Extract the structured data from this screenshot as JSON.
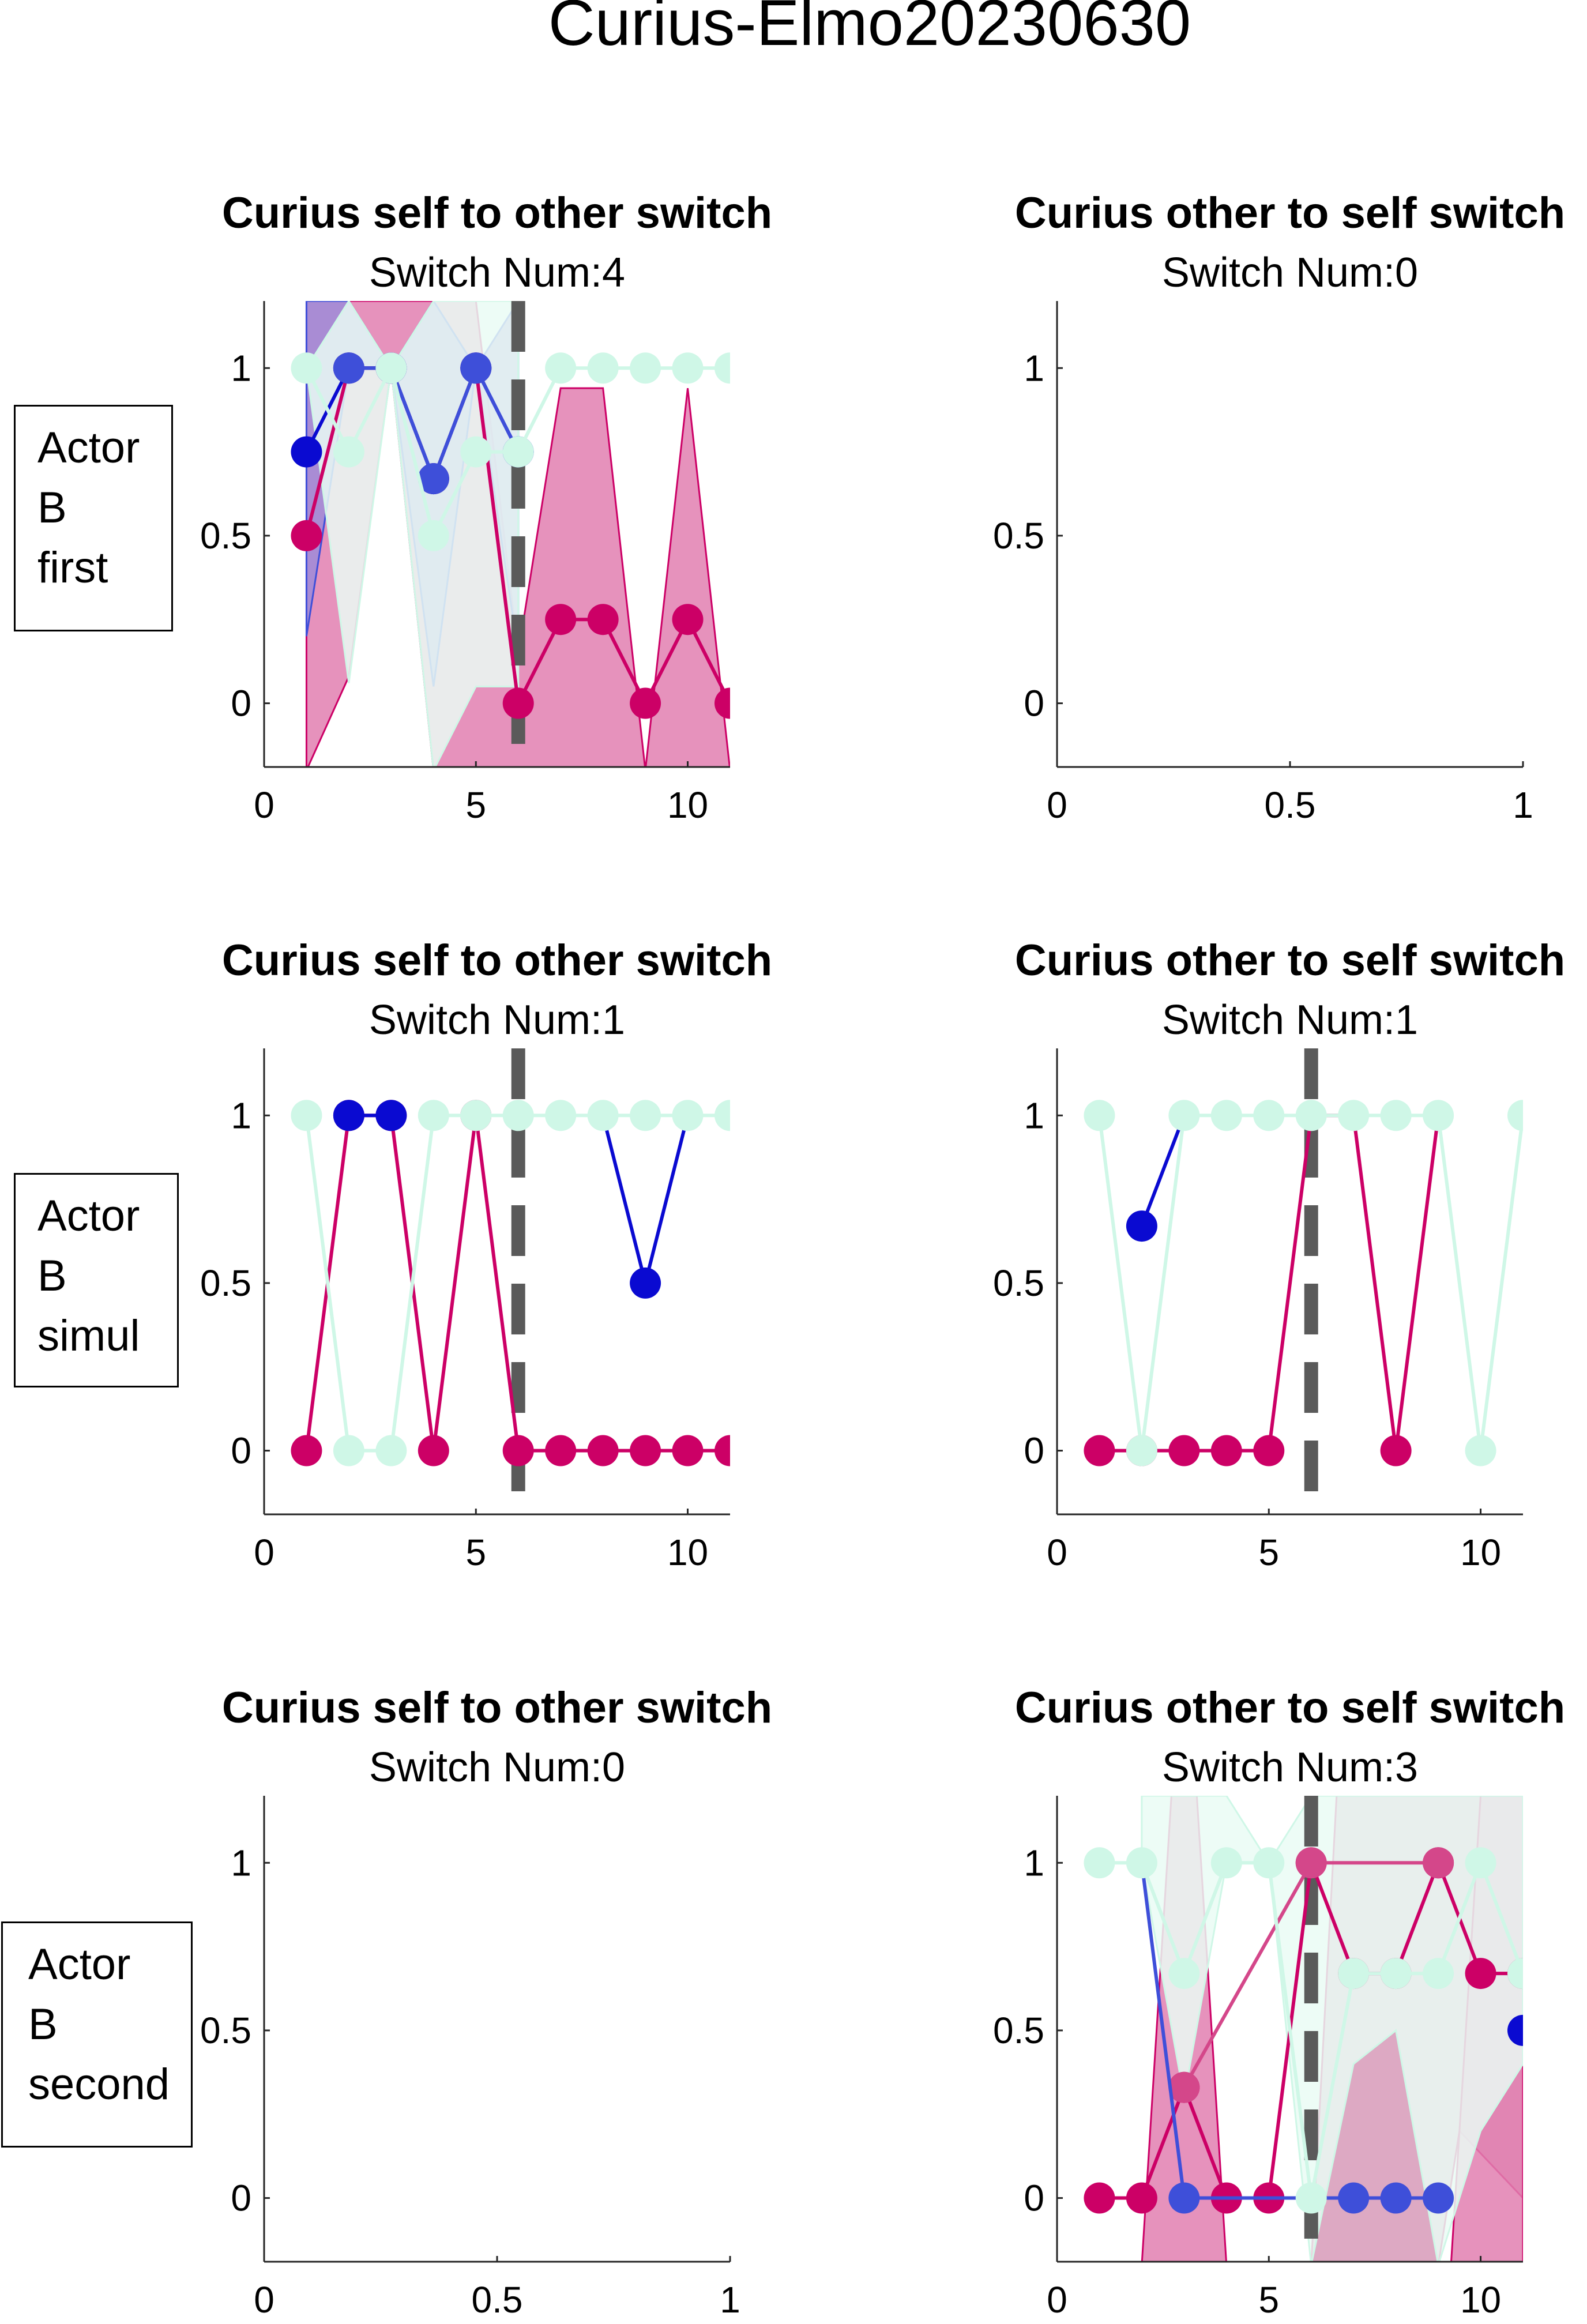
{
  "figure_title": "Curius-Elmo20230630",
  "row_labels": [
    [
      "Actor",
      "B",
      "first"
    ],
    [
      "Actor",
      "B",
      "simul"
    ],
    [
      "Actor",
      "B",
      "second"
    ]
  ],
  "colors": {
    "pink": "#cc0066",
    "pink_light": "#d4478a",
    "blue": "#0a0ad1",
    "blue_light": "#3e4fd9",
    "mint": "#cff7e7",
    "pink_fill": "#e27fb0",
    "blue_fill": "#8a9cf0",
    "purple_fill": "#9e8bd8",
    "mint_fill": "#eafcf5",
    "mauve_fill": "#d79ab9",
    "switch_line": "#5a5a5a"
  },
  "chart_data": [
    {
      "type": "line",
      "title": "Curius self to other switch",
      "subtitle": "Switch Num:4",
      "xlim": [
        0,
        11
      ],
      "ylim": [
        -0.19,
        1.2
      ],
      "xticks": [
        0,
        5,
        10
      ],
      "yticks": [
        0,
        0.5,
        1
      ],
      "xticklabels": [
        "0",
        "5",
        "10"
      ],
      "yticklabels": [
        "0",
        "0.5",
        "1"
      ],
      "switch_x": 6,
      "bands": [
        {
          "color": "pink_fill",
          "x": [
            1,
            2,
            3,
            4,
            5,
            6,
            7,
            8,
            9,
            10,
            11
          ],
          "upper": [
            1.2,
            1.2,
            1.2,
            1.2,
            1.2,
            0.15,
            0.94,
            0.94,
            -0.2,
            0.94,
            -0.2
          ],
          "lower": [
            -0.2,
            0.08,
            1.0,
            -0.2,
            -0.2,
            -0.2,
            -0.2,
            -0.2,
            -0.2,
            -0.2,
            -0.2
          ]
        },
        {
          "color": "purple_fill",
          "x": [
            1,
            2,
            3,
            4,
            5,
            6
          ],
          "upper": [
            1.2,
            1.2,
            1.0,
            1.2,
            1.0,
            1.2
          ],
          "lower": [
            0.2,
            1.0,
            1.0,
            0.05,
            1.0,
            0.15
          ]
        },
        {
          "color": "mint_fill",
          "x": [
            1,
            2,
            3,
            4,
            5,
            6
          ],
          "upper": [
            1.0,
            1.2,
            1.0,
            1.2,
            1.2,
            1.2
          ],
          "lower": [
            1.0,
            0.06,
            1.0,
            -0.2,
            0.05,
            0.05
          ]
        }
      ],
      "series": [
        {
          "color": "pink",
          "x": [
            1,
            2,
            3,
            4,
            5,
            6,
            7,
            8,
            9,
            10,
            11
          ],
          "y": [
            0.5,
            1.0,
            1.0,
            0.67,
            1.0,
            0,
            0.25,
            0.25,
            0,
            0.25,
            0
          ]
        },
        {
          "color": "blue",
          "x": [
            1,
            2,
            3,
            4,
            5,
            6
          ],
          "y": [
            0.75,
            1.0,
            1.0,
            0.67,
            1.0,
            0.75
          ]
        },
        {
          "color": "blue_light",
          "x": [
            2,
            3,
            4,
            5,
            6
          ],
          "y": [
            1.0,
            1.0,
            0.67,
            1.0,
            0.75
          ]
        },
        {
          "color": "mint",
          "x": [
            1,
            2,
            3,
            4,
            5,
            6,
            7,
            8,
            9,
            10,
            11
          ],
          "y": [
            1.0,
            0.75,
            1.0,
            0.5,
            0.75,
            0.75,
            1.0,
            1.0,
            1.0,
            1.0,
            1.0
          ]
        }
      ]
    },
    {
      "type": "line",
      "title": "Curius other to self switch",
      "subtitle": "Switch Num:0",
      "xlim": [
        0,
        1
      ],
      "ylim": [
        -0.19,
        1.2
      ],
      "xticks": [
        0,
        0.5,
        1
      ],
      "yticks": [
        0,
        0.5,
        1
      ],
      "xticklabels": [
        "0",
        "0.5",
        "1"
      ],
      "yticklabels": [
        "0",
        "0.5",
        "1"
      ],
      "series": []
    },
    {
      "type": "line",
      "title": "Curius self to other switch",
      "subtitle": "Switch Num:1",
      "xlim": [
        0,
        11
      ],
      "ylim": [
        -0.19,
        1.2
      ],
      "xticks": [
        0,
        5,
        10
      ],
      "yticks": [
        0,
        0.5,
        1
      ],
      "xticklabels": [
        "0",
        "5",
        "10"
      ],
      "yticklabels": [
        "0",
        "0.5",
        "1"
      ],
      "switch_x": 6,
      "series": [
        {
          "color": "pink",
          "x": [
            1,
            2,
            3,
            4,
            5,
            6,
            7,
            8,
            9,
            10,
            11
          ],
          "y": [
            0,
            1,
            1,
            0,
            1,
            0,
            0,
            0,
            0,
            0,
            0
          ]
        },
        {
          "color": "blue",
          "x": [
            2,
            3
          ],
          "y": [
            1,
            1
          ]
        },
        {
          "color": "blue",
          "x": [
            8,
            9,
            10
          ],
          "y": [
            1,
            0.5,
            1
          ],
          "markers": [
            9
          ]
        },
        {
          "color": "mint",
          "x": [
            1,
            2,
            3,
            4,
            5,
            6,
            7,
            8,
            9,
            10,
            11
          ],
          "y": [
            1,
            0,
            0,
            1,
            1,
            1,
            1,
            1,
            1,
            1,
            1
          ]
        }
      ]
    },
    {
      "type": "line",
      "title": "Curius other to self switch",
      "subtitle": "Switch Num:1",
      "xlim": [
        0,
        11
      ],
      "ylim": [
        -0.19,
        1.2
      ],
      "xticks": [
        0,
        5,
        10
      ],
      "yticks": [
        0,
        0.5,
        1
      ],
      "xticklabels": [
        "0",
        "5",
        "10"
      ],
      "yticklabels": [
        "0",
        "0.5",
        "1"
      ],
      "switch_x": 6,
      "series": [
        {
          "color": "pink",
          "x": [
            1,
            2,
            3,
            4,
            5,
            6,
            7,
            8,
            9
          ],
          "y": [
            0,
            0,
            0,
            0,
            0,
            1,
            1,
            0,
            1
          ],
          "markers": [
            1,
            2,
            3,
            4,
            5,
            8
          ]
        },
        {
          "color": "blue",
          "x": [
            2,
            3
          ],
          "y": [
            0.67,
            1
          ],
          "markers": [
            2
          ]
        },
        {
          "color": "mint",
          "x": [
            1,
            2,
            3,
            4,
            5,
            6,
            7,
            8,
            9,
            10,
            11
          ],
          "y": [
            1,
            0,
            1,
            1,
            1,
            1,
            1,
            1,
            1,
            0,
            1
          ]
        }
      ]
    },
    {
      "type": "line",
      "title": "Curius self to other switch",
      "subtitle": "Switch Num:0",
      "xlim": [
        0,
        1
      ],
      "ylim": [
        -0.19,
        1.2
      ],
      "xticks": [
        0,
        0.5,
        1
      ],
      "yticks": [
        0,
        0.5,
        1
      ],
      "xticklabels": [
        "0",
        "0.5",
        "1"
      ],
      "yticklabels": [
        "0",
        "0.5",
        "1"
      ],
      "series": []
    },
    {
      "type": "line",
      "title": "Curius other to self switch",
      "subtitle": "Switch Num:3",
      "xlim": [
        0,
        11
      ],
      "ylim": [
        -0.19,
        1.2
      ],
      "xticks": [
        0,
        5,
        10
      ],
      "yticks": [
        0,
        0.5,
        1
      ],
      "xticklabels": [
        "0",
        "5",
        "10"
      ],
      "yticklabels": [
        "0",
        "0.5",
        "1"
      ],
      "switch_x": 6,
      "bands": [
        {
          "color": "pink_fill",
          "x": [
            2,
            2.7,
            3,
            3.3,
            4
          ],
          "upper": [
            -0.2,
            1.2,
            1.2,
            1.2,
            -0.2
          ],
          "lower": [
            -0.2,
            -0.2,
            -0.2,
            -0.2,
            -0.2
          ]
        },
        {
          "color": "mauve_fill",
          "x": [
            6,
            6.6,
            9,
            9.5,
            11
          ],
          "upper": [
            -0.2,
            1.2,
            1.2,
            1.2,
            1.2
          ],
          "lower": [
            -0.2,
            -0.2,
            -0.2,
            0.2,
            0.0
          ]
        },
        {
          "color": "pink_fill",
          "x": [
            9.3,
            10,
            11
          ],
          "upper": [
            -0.2,
            1.2,
            1.2
          ],
          "lower": [
            -0.2,
            -0.2,
            -0.2
          ]
        },
        {
          "color": "mint_fill",
          "x": [
            2,
            3,
            4,
            5,
            6,
            7,
            8,
            9,
            10,
            11
          ],
          "upper": [
            1.2,
            1.2,
            1.2,
            1.0,
            1.2,
            1.2,
            1.2,
            1.2,
            1.2,
            1.2
          ],
          "lower": [
            1.0,
            0.3,
            1.0,
            1.0,
            -0.2,
            0.4,
            0.5,
            -0.2,
            0.2,
            0.4
          ]
        }
      ],
      "series": [
        {
          "color": "pink",
          "x": [
            1,
            2,
            3,
            4,
            5,
            6,
            7,
            8,
            9,
            10,
            11
          ],
          "y": [
            0,
            0,
            0.33,
            0,
            0,
            1,
            0.67,
            0.67,
            1,
            0.67,
            0.67
          ]
        },
        {
          "color": "pink_light",
          "x": [
            3,
            6,
            9
          ],
          "y": [
            0.33,
            1,
            1
          ]
        },
        {
          "color": "blue_light",
          "x": [
            2,
            3,
            6,
            7,
            8,
            9
          ],
          "y": [
            1,
            0,
            0,
            0,
            0,
            0
          ],
          "markers": [
            3,
            7,
            8,
            9
          ]
        },
        {
          "color": "blue",
          "x": [
            11
          ],
          "y": [
            0.5
          ]
        },
        {
          "color": "mint",
          "x": [
            1,
            2,
            3,
            4,
            5,
            6,
            7,
            8,
            9,
            10,
            11
          ],
          "y": [
            1,
            1,
            0.67,
            1,
            1,
            0,
            0.67,
            0.67,
            0.67,
            1,
            0.67
          ]
        }
      ]
    }
  ]
}
